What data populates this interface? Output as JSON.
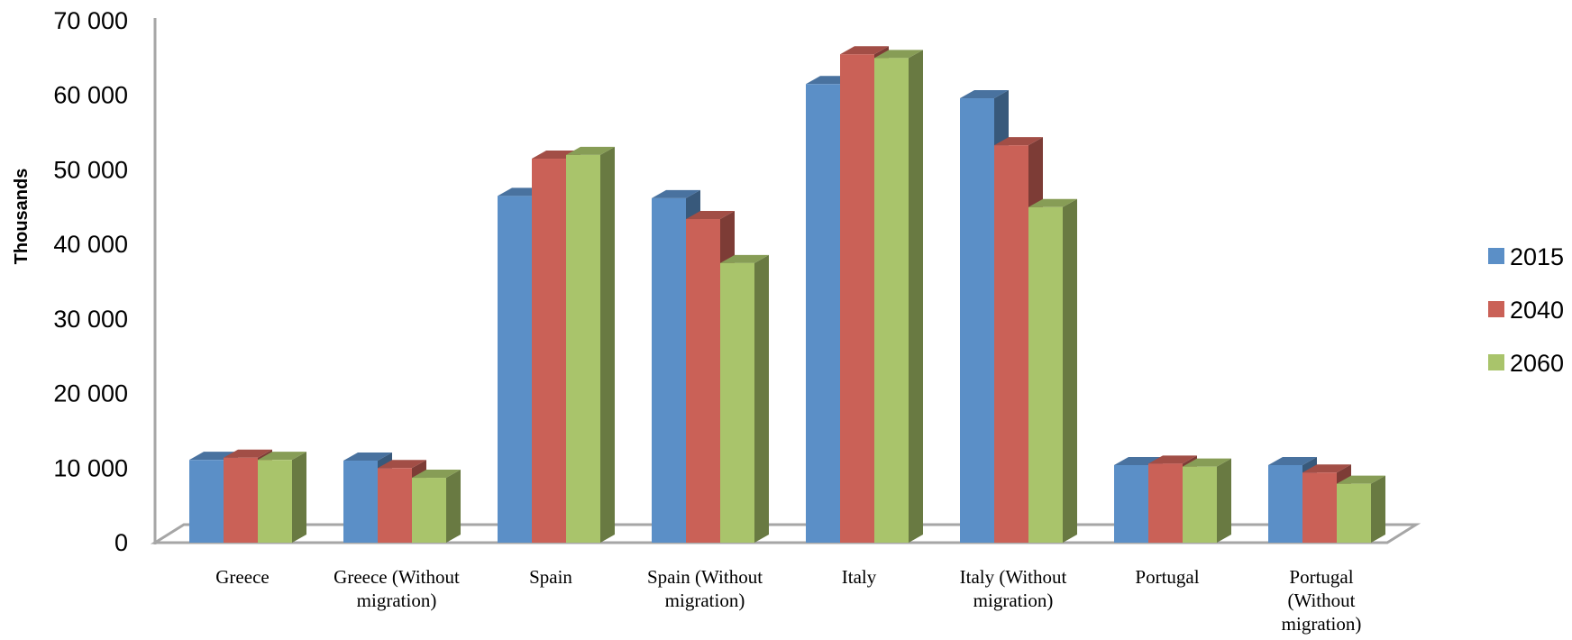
{
  "chart_data": {
    "type": "bar",
    "title": "",
    "xlabel": "",
    "ylabel": "Thousands",
    "ylim": [
      0,
      70000
    ],
    "yticks": [
      0,
      10000,
      20000,
      30000,
      40000,
      50000,
      60000,
      70000
    ],
    "ytick_labels": [
      "0",
      "10 000",
      "20 000",
      "30 000",
      "40 000",
      "50 000",
      "60 000",
      "70 000"
    ],
    "grid": false,
    "legend_position": "right",
    "categories": [
      "Greece",
      "Greece (Without migration)",
      "Spain",
      "Spain (Without migration)",
      "Italy",
      "Italy (Without migration)",
      "Portugal",
      "Portugal (Without migration)"
    ],
    "category_lines": [
      [
        "Greece"
      ],
      [
        "Greece (Without",
        "migration)"
      ],
      [
        "Spain"
      ],
      [
        "Spain (Without",
        "migration)"
      ],
      [
        "Italy"
      ],
      [
        "Italy (Without",
        "migration)"
      ],
      [
        "Portugal"
      ],
      [
        "Portugal",
        "(Without",
        "migration)"
      ]
    ],
    "series": [
      {
        "name": "2015",
        "color": "#5B8FC7",
        "values": [
          11100,
          11000,
          46500,
          46200,
          61500,
          59600,
          10400,
          10400
        ]
      },
      {
        "name": "2040",
        "color": "#CA6157",
        "values": [
          11400,
          10000,
          51500,
          43400,
          65500,
          53300,
          10600,
          9400
        ]
      },
      {
        "name": "2060",
        "color": "#A9C46B",
        "values": [
          11100,
          8700,
          52000,
          37500,
          65000,
          45000,
          10200,
          7900
        ]
      }
    ]
  }
}
